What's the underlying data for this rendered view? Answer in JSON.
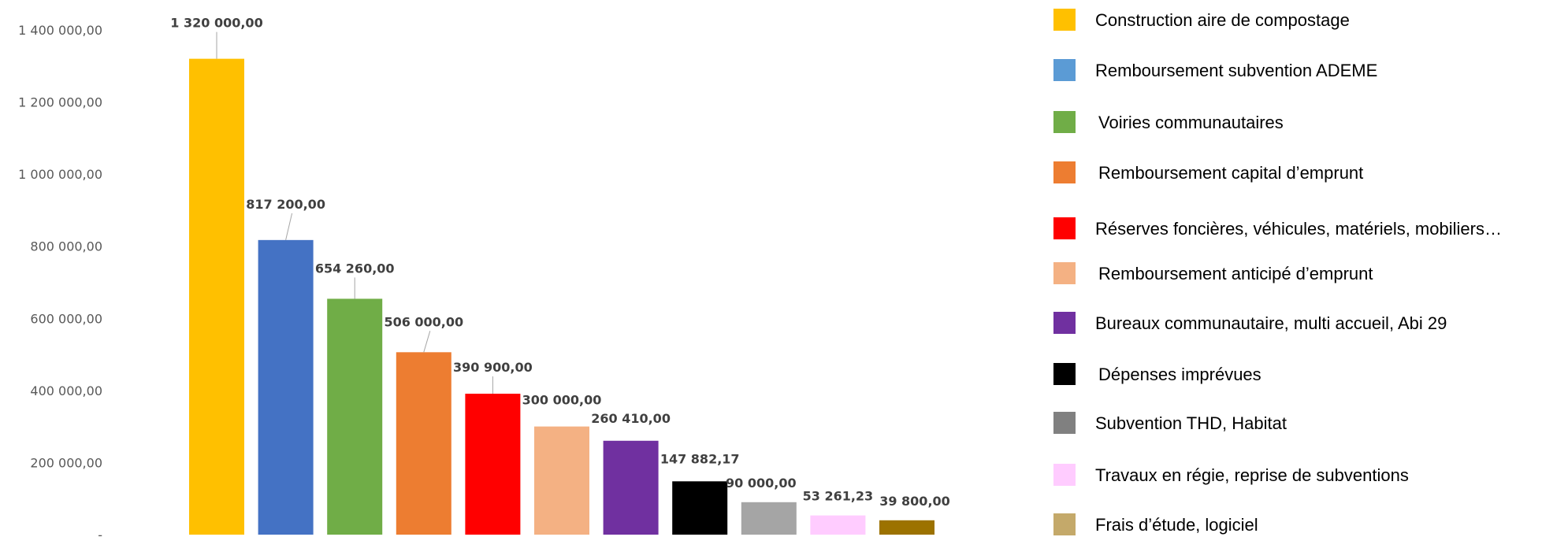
{
  "chart_data": {
    "type": "bar",
    "title": "",
    "xlabel": "",
    "ylabel": "",
    "ylim": [
      0,
      1400000
    ],
    "grid": false,
    "legend_position": "right",
    "yticks": [
      {
        "value": 0,
        "label": "-"
      },
      {
        "value": 200000,
        "label": "200 000,00"
      },
      {
        "value": 400000,
        "label": "400 000,00"
      },
      {
        "value": 600000,
        "label": "600 000,00"
      },
      {
        "value": 800000,
        "label": "800 000,00"
      },
      {
        "value": 1000000,
        "label": "1 000 000,00"
      },
      {
        "value": 1200000,
        "label": "1 200 000,00"
      },
      {
        "value": 1400000,
        "label": "1 400 000,00"
      }
    ],
    "categories": [
      "Construction aire de compostage",
      "Remboursement subvention ADEME",
      "Voiries communautaires",
      "Remboursement capital d’emprunt",
      "Réserves foncières, véhicules, matériels, mobiliers…",
      "Remboursement anticipé d’emprunt",
      "Bureaux communautaire, multi accueil, Abi 29",
      "Dépenses imprévues",
      "Subvention THD, Habitat",
      "Travaux en régie, reprise de subventions",
      "Frais d’étude, logiciel"
    ],
    "values": [
      1320000,
      817200,
      654260,
      506000,
      390900,
      300000,
      260410,
      147882.17,
      90000,
      53261.23,
      39800
    ],
    "value_labels": [
      "1 320 000,00",
      "817 200,00",
      "654 260,00",
      "506 000,00",
      "390 900,00",
      "300 000,00",
      "260 410,00",
      "147 882,17",
      "90 000,00",
      "53 261,23",
      "39 800,00"
    ],
    "bar_colors": [
      "#FFC000",
      "#4472C4",
      "#70AD47",
      "#ED7D31",
      "#FF0000",
      "#F4B183",
      "#7030A0",
      "#000000",
      "#A5A5A5",
      "#FFCCFF",
      "#9C7200"
    ],
    "legend": [
      {
        "label": "Construction aire de compostage",
        "color": "#FFC000"
      },
      {
        "label": "Remboursement subvention ADEME",
        "color": "#5B9BD5"
      },
      {
        "label": "Voiries communautaires",
        "color": "#70AD47"
      },
      {
        "label": "Remboursement capital d’emprunt",
        "color": "#ED7D31"
      },
      {
        "label": "Réserves foncières, véhicules, matériels, mobiliers…",
        "color": "#FF0000"
      },
      {
        "label": "Remboursement anticipé d’emprunt",
        "color": "#F4B183"
      },
      {
        "label": "Bureaux communautaire, multi accueil, Abi 29",
        "color": "#7030A0"
      },
      {
        "label": "Dépenses imprévues",
        "color": "#000000"
      },
      {
        "label": "Subvention THD, Habitat",
        "color": "#808080"
      },
      {
        "label": "Travaux en régie, reprise de subventions",
        "color": "#FFCCFF"
      },
      {
        "label": "Frais d’étude, logiciel",
        "color": "#C4A96A"
      }
    ]
  }
}
